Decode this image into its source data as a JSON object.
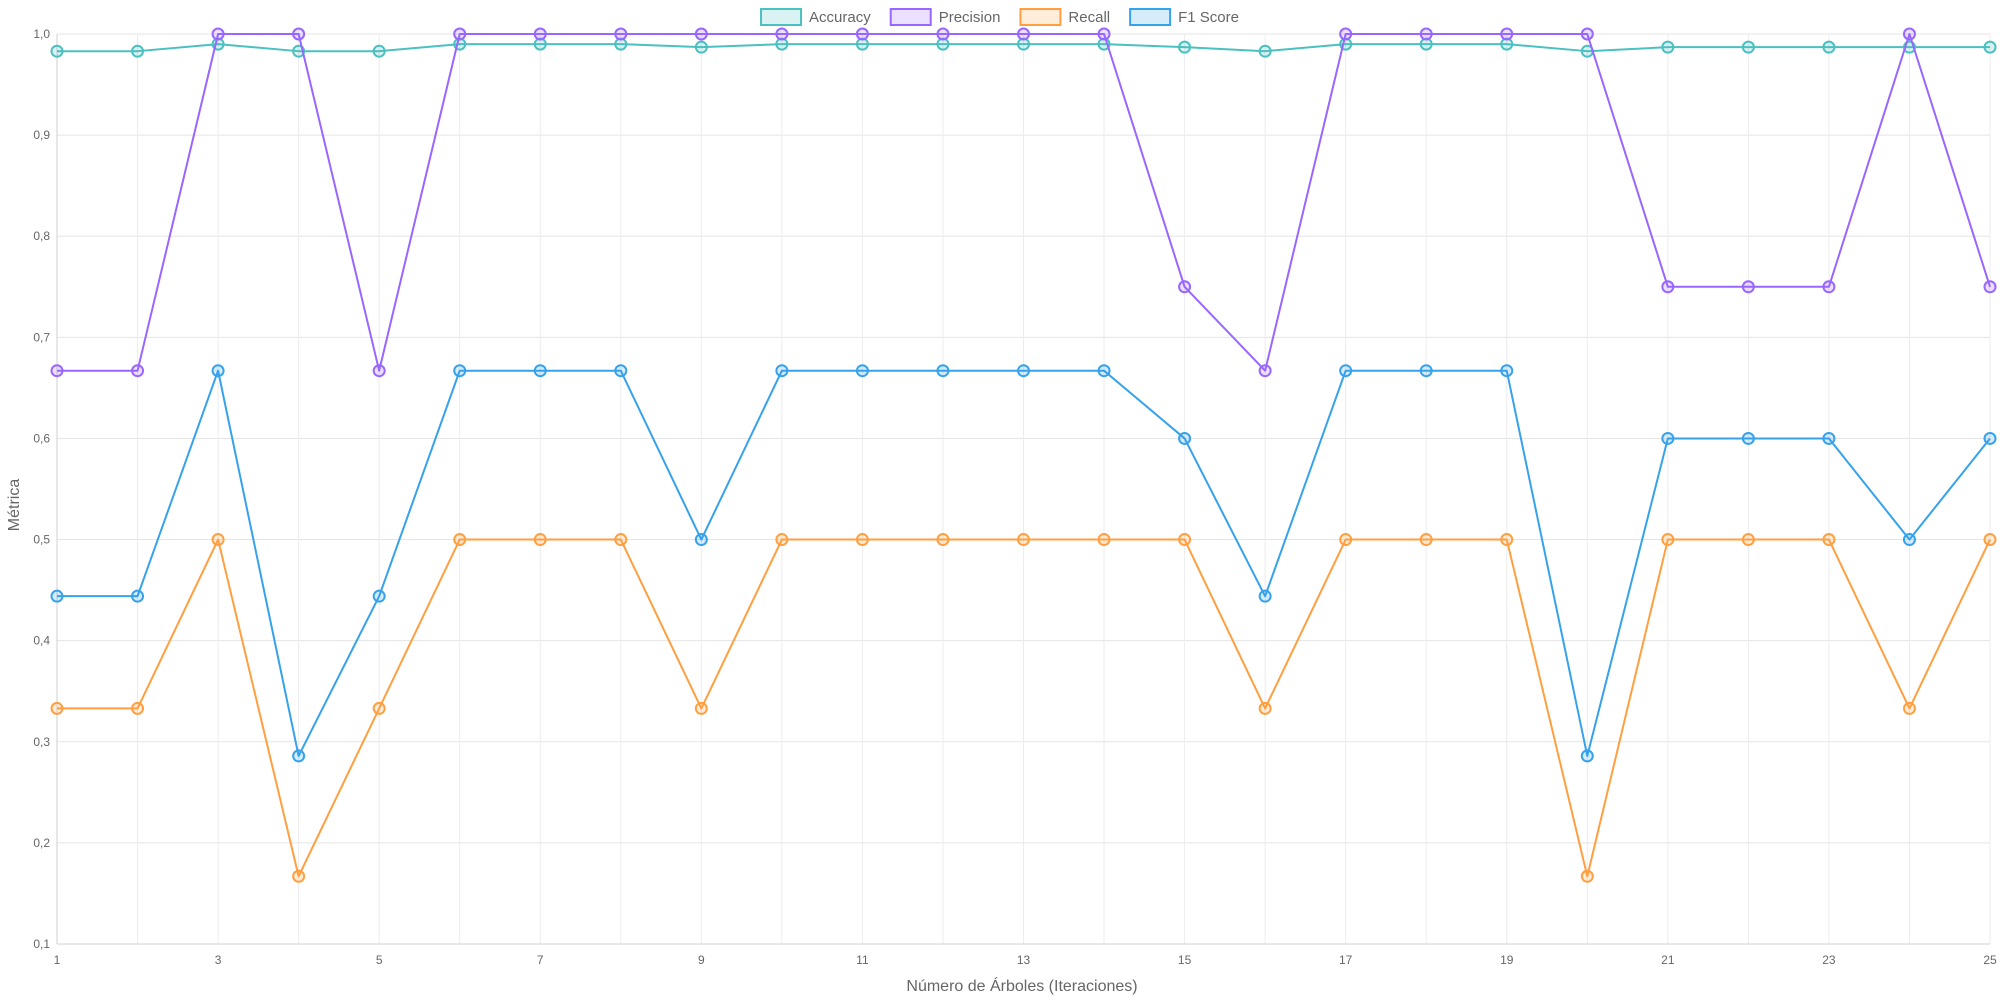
{
  "chart_data": {
    "type": "line",
    "title": "",
    "xlabel": "Número de Árboles (Iteraciones)",
    "ylabel": "Métrica",
    "x": [
      1,
      2,
      3,
      4,
      5,
      6,
      7,
      8,
      9,
      10,
      11,
      12,
      13,
      14,
      15,
      16,
      17,
      18,
      19,
      20,
      21,
      22,
      23,
      24,
      25
    ],
    "x_tick_labels": [
      "1",
      "3",
      "5",
      "7",
      "9",
      "11",
      "13",
      "15",
      "17",
      "19",
      "21",
      "23",
      "25"
    ],
    "y_tick_labels": [
      "0,1",
      "0,2",
      "0,3",
      "0,4",
      "0,5",
      "0,6",
      "0,7",
      "0,8",
      "0,9",
      "1,0"
    ],
    "ylim": [
      0.1,
      1.0
    ],
    "grid": true,
    "legend_position": "top",
    "series": [
      {
        "name": "Accuracy",
        "color": "#4bc0c0",
        "fill": "rgba(75,192,192,0.2)",
        "values": [
          0.983,
          0.983,
          0.99,
          0.983,
          0.983,
          0.99,
          0.99,
          0.99,
          0.987,
          0.99,
          0.99,
          0.99,
          0.99,
          0.99,
          0.987,
          0.983,
          0.99,
          0.99,
          0.99,
          0.983,
          0.987,
          0.987,
          0.987,
          0.987,
          0.987
        ]
      },
      {
        "name": "Precision",
        "color": "#9966ff",
        "fill": "rgba(153,102,255,0.2)",
        "values": [
          0.667,
          0.667,
          1.0,
          1.0,
          0.667,
          1.0,
          1.0,
          1.0,
          1.0,
          1.0,
          1.0,
          1.0,
          1.0,
          1.0,
          0.75,
          0.667,
          1.0,
          1.0,
          1.0,
          1.0,
          0.75,
          0.75,
          0.75,
          1.0,
          0.75
        ]
      },
      {
        "name": "Recall",
        "color": "#ff9f40",
        "fill": "rgba(255,159,64,0.2)",
        "values": [
          0.333,
          0.333,
          0.5,
          0.167,
          0.333,
          0.5,
          0.5,
          0.5,
          0.333,
          0.5,
          0.5,
          0.5,
          0.5,
          0.5,
          0.5,
          0.333,
          0.5,
          0.5,
          0.5,
          0.167,
          0.5,
          0.5,
          0.5,
          0.333,
          0.5
        ]
      },
      {
        "name": "F1 Score",
        "color": "#36a2eb",
        "fill": "rgba(54,162,235,0.2)",
        "values": [
          0.444,
          0.444,
          0.667,
          0.286,
          0.444,
          0.667,
          0.667,
          0.667,
          0.5,
          0.667,
          0.667,
          0.667,
          0.667,
          0.667,
          0.6,
          0.444,
          0.667,
          0.667,
          0.667,
          0.286,
          0.6,
          0.6,
          0.6,
          0.5,
          0.6
        ]
      }
    ]
  }
}
